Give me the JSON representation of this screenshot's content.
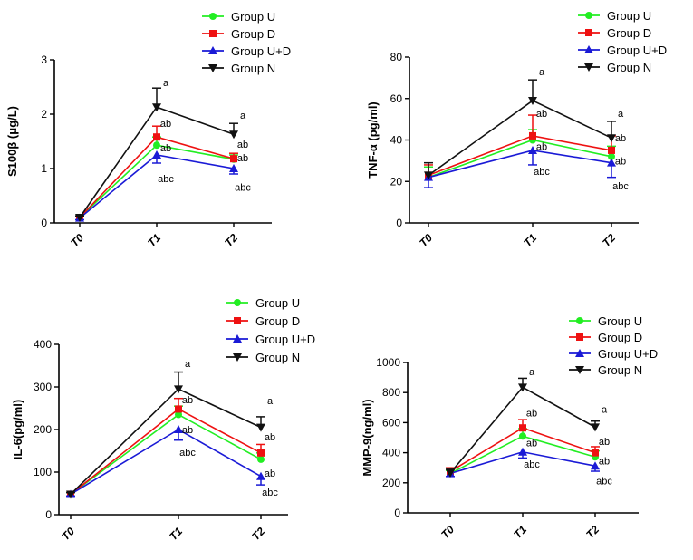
{
  "colors": {
    "Group U": "#22ee22",
    "Group D": "#ee1111",
    "Group U+D": "#1a1ad6",
    "Group N": "#111111"
  },
  "chart_data": [
    {
      "type": "line",
      "title": "",
      "xlabel": "",
      "ylabel": "S100β (μg/L)",
      "categories": [
        "T0",
        "T1",
        "T2"
      ],
      "ylim": [
        0,
        3
      ],
      "yticks": [
        0,
        1,
        2,
        3
      ],
      "legend": "top-right",
      "series": [
        {
          "name": "Group U",
          "values": [
            0.1,
            1.43,
            1.17
          ],
          "errors": [
            0.03,
            0.15,
            0.08
          ],
          "marker": "circle"
        },
        {
          "name": "Group D",
          "values": [
            0.1,
            1.58,
            1.18
          ],
          "errors": [
            0.03,
            0.2,
            0.1
          ],
          "marker": "square"
        },
        {
          "name": "Group U+D",
          "values": [
            0.09,
            1.25,
            1.0
          ],
          "errors": [
            0.03,
            0.15,
            0.1
          ],
          "marker": "triangle-up"
        },
        {
          "name": "Group N",
          "values": [
            0.1,
            2.13,
            1.63
          ],
          "errors": [
            0.03,
            0.35,
            0.2
          ],
          "marker": "triangle-down"
        }
      ],
      "annotations": [
        {
          "category": "T1",
          "value": 2.58,
          "text": "a"
        },
        {
          "category": "T1",
          "value": 1.83,
          "text": "ab"
        },
        {
          "category": "T1",
          "value": 1.38,
          "text": "ab"
        },
        {
          "category": "T1",
          "value": 0.82,
          "text": "abc"
        },
        {
          "category": "T2",
          "value": 1.98,
          "text": "a"
        },
        {
          "category": "T2",
          "value": 1.45,
          "text": "ab"
        },
        {
          "category": "T2",
          "value": 1.2,
          "text": "ab"
        },
        {
          "category": "T2",
          "value": 0.66,
          "text": "abc"
        }
      ]
    },
    {
      "type": "line",
      "title": "",
      "xlabel": "",
      "ylabel": "TNF-α (pg/ml)",
      "categories": [
        "T0",
        "T1",
        "T2"
      ],
      "ylim": [
        0,
        80
      ],
      "yticks": [
        0,
        20,
        40,
        60,
        80
      ],
      "legend": "top-right",
      "series": [
        {
          "name": "Group U",
          "values": [
            22,
            40,
            32
          ],
          "errors": [
            5,
            5,
            5
          ],
          "marker": "circle"
        },
        {
          "name": "Group D",
          "values": [
            23,
            42,
            35
          ],
          "errors": [
            5,
            10,
            7
          ],
          "marker": "square"
        },
        {
          "name": "Group U+D",
          "values": [
            22,
            35,
            29
          ],
          "errors": [
            5,
            7,
            7
          ],
          "marker": "triangle-up"
        },
        {
          "name": "Group N",
          "values": [
            23,
            59,
            41
          ],
          "errors": [
            6,
            10,
            8
          ],
          "marker": "triangle-down"
        }
      ],
      "annotations": [
        {
          "category": "T1",
          "value": 73,
          "text": "a"
        },
        {
          "category": "T1",
          "value": 53,
          "text": "ab"
        },
        {
          "category": "T1",
          "value": 37,
          "text": "ab"
        },
        {
          "category": "T1",
          "value": 25,
          "text": "abc"
        },
        {
          "category": "T2",
          "value": 53,
          "text": "a"
        },
        {
          "category": "T2",
          "value": 41,
          "text": "ab"
        },
        {
          "category": "T2",
          "value": 30,
          "text": "ab"
        },
        {
          "category": "T2",
          "value": 18,
          "text": "abc"
        }
      ]
    },
    {
      "type": "line",
      "title": "",
      "xlabel": "",
      "ylabel": "IL-6(pg/ml)",
      "categories": [
        "T0",
        "T1",
        "T2"
      ],
      "ylim": [
        0,
        400
      ],
      "yticks": [
        0,
        100,
        200,
        300,
        400
      ],
      "legend": "top-right",
      "series": [
        {
          "name": "Group U",
          "values": [
            48,
            235,
            130
          ],
          "errors": [
            4,
            20,
            15
          ],
          "marker": "circle"
        },
        {
          "name": "Group D",
          "values": [
            48,
            248,
            145
          ],
          "errors": [
            4,
            25,
            20
          ],
          "marker": "square"
        },
        {
          "name": "Group U+D",
          "values": [
            48,
            200,
            90
          ],
          "errors": [
            4,
            25,
            20
          ],
          "marker": "triangle-up"
        },
        {
          "name": "Group N",
          "values": [
            48,
            295,
            205
          ],
          "errors": [
            4,
            40,
            25
          ],
          "marker": "triangle-down"
        }
      ],
      "annotations": [
        {
          "category": "T1",
          "value": 355,
          "text": "a"
        },
        {
          "category": "T1",
          "value": 270,
          "text": "ab"
        },
        {
          "category": "T1",
          "value": 200,
          "text": "ab"
        },
        {
          "category": "T1",
          "value": 147,
          "text": "abc"
        },
        {
          "category": "T2",
          "value": 268,
          "text": "a"
        },
        {
          "category": "T2",
          "value": 183,
          "text": "ab"
        },
        {
          "category": "T2",
          "value": 98,
          "text": "ab"
        },
        {
          "category": "T2",
          "value": 53,
          "text": "abc"
        }
      ]
    },
    {
      "type": "line",
      "title": "",
      "xlabel": "",
      "ylabel": "MMP-9(ng/ml)",
      "categories": [
        "T0",
        "T1",
        "T2"
      ],
      "ylim": [
        0,
        1000
      ],
      "yticks": [
        0,
        200,
        400,
        600,
        800,
        1000
      ],
      "legend": "top-right",
      "series": [
        {
          "name": "Group U",
          "values": [
            262,
            510,
            372
          ],
          "errors": [
            20,
            50,
            40
          ],
          "marker": "circle"
        },
        {
          "name": "Group D",
          "values": [
            275,
            565,
            400
          ],
          "errors": [
            25,
            55,
            40
          ],
          "marker": "square"
        },
        {
          "name": "Group U+D",
          "values": [
            262,
            405,
            312
          ],
          "errors": [
            20,
            40,
            35
          ],
          "marker": "triangle-up"
        },
        {
          "name": "Group N",
          "values": [
            265,
            835,
            570
          ],
          "errors": [
            25,
            60,
            40
          ],
          "marker": "triangle-down"
        }
      ],
      "annotations": [
        {
          "category": "T1",
          "value": 940,
          "text": "a"
        },
        {
          "category": "T1",
          "value": 665,
          "text": "ab"
        },
        {
          "category": "T1",
          "value": 468,
          "text": "ab"
        },
        {
          "category": "T1",
          "value": 325,
          "text": "abc"
        },
        {
          "category": "T2",
          "value": 690,
          "text": "a"
        },
        {
          "category": "T2",
          "value": 475,
          "text": "ab"
        },
        {
          "category": "T2",
          "value": 345,
          "text": "ab"
        },
        {
          "category": "T2",
          "value": 215,
          "text": "abc"
        }
      ]
    }
  ]
}
